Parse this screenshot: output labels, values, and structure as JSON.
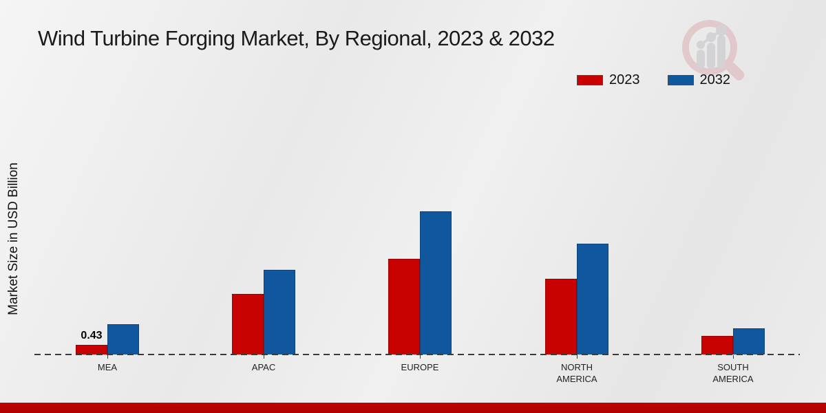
{
  "page": {
    "title": "Wind Turbine Forging Market, By Regional, 2023 & 2032",
    "ylabel": "Market Size in USD Billion",
    "watermark_icon": "magnifier-chart-logo"
  },
  "legend": {
    "items": [
      {
        "label": "2023",
        "color": "#C80201"
      },
      {
        "label": "2032",
        "color": "#11579D"
      }
    ],
    "position": "top-right"
  },
  "chart_data": {
    "type": "bar",
    "title": "Wind Turbine Forging Market, By Regional, 2023 & 2032",
    "xlabel": "",
    "ylabel": "Market Size in USD Billion",
    "categories": [
      "MEA",
      "APAC",
      "EUROPE",
      "NORTH AMERICA",
      "SOUTH AMERICA"
    ],
    "series": [
      {
        "name": "2023",
        "color": "#C80201",
        "values": [
          0.43,
          2.8,
          4.4,
          3.5,
          0.85
        ]
      },
      {
        "name": "2032",
        "color": "#11579D",
        "values": [
          1.4,
          3.9,
          6.6,
          5.1,
          1.2
        ]
      }
    ],
    "data_labels": [
      {
        "category": "MEA",
        "series": "2023",
        "text": "0.43"
      }
    ],
    "ylim": [
      0,
      7
    ],
    "grid": false,
    "baseline_style": "dashed",
    "legend_position": "top-right"
  },
  "footer": {
    "accent_color": "#B50201"
  }
}
